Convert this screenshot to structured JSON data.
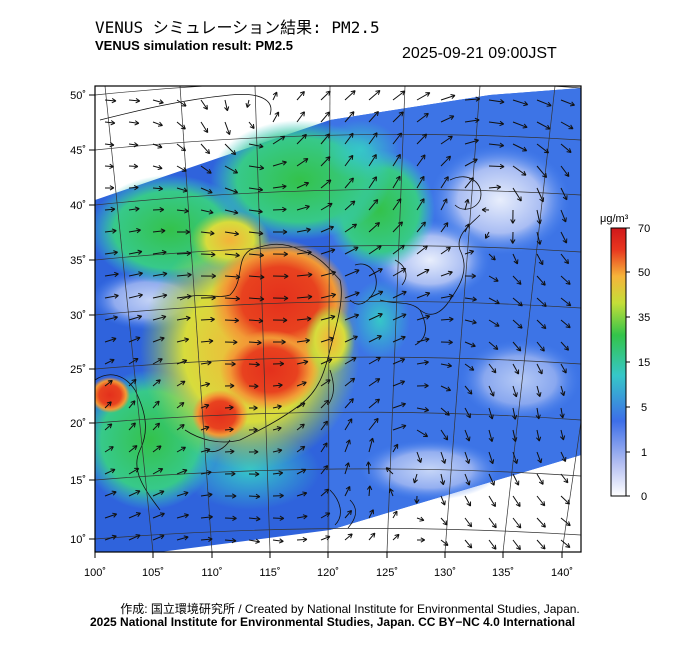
{
  "header": {
    "title_jp": "VENUS シミュレーション結果: PM2.5",
    "title_en": "VENUS simulation result: PM2.5",
    "datetime": "2025-09-21 09:00JST"
  },
  "map": {
    "lon_labels": [
      "100˚",
      "105˚",
      "110˚",
      "115˚",
      "120˚",
      "125˚",
      "130˚",
      "135˚",
      "140˚"
    ],
    "lat_labels": [
      "50˚",
      "45˚",
      "40˚",
      "35˚",
      "30˚",
      "25˚",
      "20˚",
      "15˚",
      "10˚"
    ],
    "field_colors": [
      "#2b5fd8",
      "#4a86f0",
      "#36c7c8",
      "#34c24b",
      "#b7d83a",
      "#f2a53a",
      "#e8361f"
    ]
  },
  "colorbar": {
    "unit": "μg/m³",
    "labels": [
      "70",
      "50",
      "35",
      "15",
      "5",
      "1",
      "0"
    ],
    "colors": [
      "#ffffff",
      "#b4bff2",
      "#4a86f0",
      "#36c7c8",
      "#33c44a",
      "#c4de38",
      "#f6b43a",
      "#e8361f",
      "#d8201b"
    ]
  },
  "footer": {
    "credit": "作成: 国立環境研究所 / Created by National Institute for Environmental Studies, Japan.",
    "copyright": "2025 National Institute for Environmental Studies, Japan. CC BY−NC 4.0 International"
  }
}
